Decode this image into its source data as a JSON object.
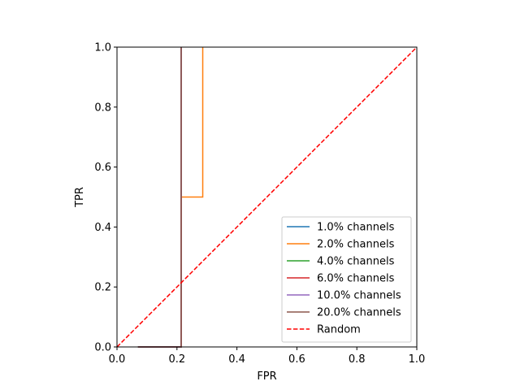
{
  "chart_data": {
    "type": "line",
    "title": "",
    "xlabel": "FPR",
    "ylabel": "TPR",
    "xlim": [
      0,
      1
    ],
    "ylim": [
      0,
      1
    ],
    "xticks": [
      "0.0",
      "0.2",
      "0.4",
      "0.6",
      "0.8",
      "1.0"
    ],
    "yticks": [
      "0.0",
      "0.2",
      "0.4",
      "0.6",
      "0.8",
      "1.0"
    ],
    "grid": false,
    "legend_position": "lower-right",
    "series": [
      {
        "name": "1.0% channels",
        "color": "#1f77b4",
        "dash": false,
        "x": [
          0.07,
          0.214,
          0.214,
          0.214
        ],
        "y": [
          0.0,
          0.0,
          0.5,
          1.0
        ]
      },
      {
        "name": "2.0% channels",
        "color": "#ff7f0e",
        "dash": false,
        "x": [
          0.07,
          0.214,
          0.214,
          0.286,
          0.286
        ],
        "y": [
          0.0,
          0.0,
          0.5,
          0.5,
          1.0
        ]
      },
      {
        "name": "4.0% channels",
        "color": "#2ca02c",
        "dash": false,
        "x": [
          0.07,
          0.214,
          0.214
        ],
        "y": [
          0.0,
          0.0,
          1.0
        ]
      },
      {
        "name": "6.0% channels",
        "color": "#d62728",
        "dash": false,
        "x": [
          0.07,
          0.214,
          0.214
        ],
        "y": [
          0.0,
          0.0,
          1.0
        ]
      },
      {
        "name": "10.0% channels",
        "color": "#9467bd",
        "dash": false,
        "x": [
          0.07,
          0.214,
          0.214
        ],
        "y": [
          0.0,
          0.0,
          1.0
        ]
      },
      {
        "name": "20.0% channels",
        "color": "#8c564b",
        "dash": false,
        "x": [
          0.07,
          0.214,
          0.214
        ],
        "y": [
          0.0,
          0.0,
          1.0
        ]
      },
      {
        "name": "Random",
        "color": "#ff0000",
        "dash": true,
        "x": [
          0,
          1
        ],
        "y": [
          0,
          1
        ]
      }
    ]
  }
}
